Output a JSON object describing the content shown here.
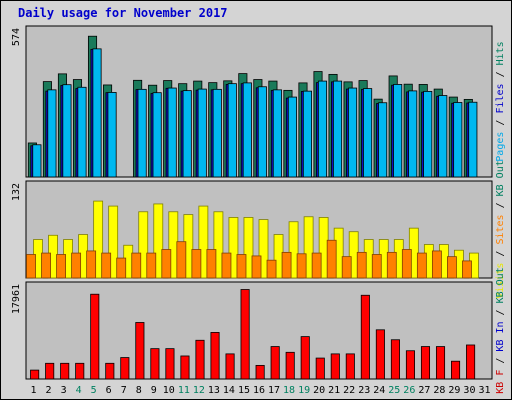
{
  "chart_data": {
    "type": "bar",
    "title": "Daily usage for November 2017",
    "categories": [
      "1",
      "2",
      "3",
      "4",
      "5",
      "6",
      "7",
      "8",
      "9",
      "10",
      "11",
      "12",
      "13",
      "14",
      "15",
      "16",
      "17",
      "18",
      "19",
      "20",
      "21",
      "22",
      "23",
      "24",
      "25",
      "26",
      "27",
      "28",
      "29",
      "30",
      "31"
    ],
    "weekend_days": [
      "4",
      "5",
      "11",
      "12",
      "18",
      "19",
      "25",
      "26"
    ],
    "panels": [
      {
        "id": "top",
        "ymax_label": "574",
        "ylim": [
          0,
          574
        ],
        "label_parts": [
          {
            "text": "Pages",
            "color": "#00a8e8"
          },
          {
            "text": " / ",
            "color": "#000000"
          },
          {
            "text": "Files",
            "color": "#0000cc"
          },
          {
            "text": " / ",
            "color": "#000000"
          },
          {
            "text": "Hits",
            "color": "#008060"
          }
        ],
        "series": [
          {
            "name": "Hits",
            "color": "#1a7a5a",
            "values": [
              132,
              370,
              400,
              378,
              546,
              357,
              0,
              375,
              356,
              374,
              362,
              372,
              366,
              373,
              401,
              378,
              372,
              336,
              365,
              409,
              398,
              369,
              374,
              302,
              392,
              360,
              359,
              341,
              310,
              301,
              0
            ]
          },
          {
            "name": "Files",
            "color": "#1010c0",
            "values": [
              121,
              333,
              355,
              343,
              495,
              327,
              0,
              339,
              324,
              344,
              333,
              337,
              338,
              359,
              362,
              346,
              336,
              306,
              332,
              366,
              369,
              341,
              340,
              285,
              356,
              330,
              329,
              313,
              286,
              287,
              0
            ]
          },
          {
            "name": "Pages",
            "color": "#00b8f0",
            "values": [
              125,
              338,
              358,
              348,
              497,
              328,
              0,
              340,
              327,
              345,
              335,
              341,
              340,
              362,
              365,
              350,
              338,
              310,
              333,
              372,
              372,
              345,
              343,
              288,
              359,
              334,
              332,
              316,
              289,
              290,
              0
            ]
          }
        ]
      },
      {
        "id": "middle",
        "ymax_label": "132",
        "ylim": [
          0,
          132
        ],
        "label_parts": [
          {
            "text": "Visits",
            "color": "#e8e800"
          },
          {
            "text": " / ",
            "color": "#000000"
          },
          {
            "text": "Sites",
            "color": "#ff8000"
          },
          {
            "text": " / ",
            "color": "#000000"
          },
          {
            "text": "KB Out",
            "color": "#008060"
          }
        ],
        "series": [
          {
            "name": "Visits",
            "color": "#ffff00",
            "values": [
              54,
              60,
              54,
              61,
              108,
              101,
              46,
              93,
              104,
              93,
              89,
              101,
              93,
              85,
              85,
              82,
              61,
              79,
              86,
              85,
              70,
              65,
              54,
              54,
              54,
              70,
              47,
              47,
              39,
              35,
              0
            ]
          },
          {
            "name": "Sites",
            "color": "#ff8000",
            "values": [
              33,
              35,
              33,
              35,
              38,
              35,
              28,
              35,
              35,
              40,
              51,
              40,
              40,
              35,
              33,
              31,
              25,
              36,
              34,
              35,
              53,
              30,
              36,
              33,
              36,
              40,
              35,
              38,
              30,
              24,
              0
            ]
          }
        ]
      },
      {
        "id": "bottom",
        "ymax_label": "17961",
        "ylim": [
          0,
          17961
        ],
        "label_parts": [
          {
            "text": "KB F",
            "color": "#cc0000"
          },
          {
            "text": " / ",
            "color": "#000000"
          },
          {
            "text": "KB In",
            "color": "#0000cc"
          },
          {
            "text": " / ",
            "color": "#000000"
          },
          {
            "text": "KB Out",
            "color": "#008060"
          }
        ],
        "series": [
          {
            "name": "KB F",
            "color": "#ff0000",
            "values": [
              1700,
              3000,
              3000,
              3000,
              16200,
              3000,
              4100,
              10800,
              5800,
              5800,
              4400,
              7400,
              8900,
              4800,
              17100,
              2600,
              6200,
              5100,
              8100,
              4000,
              4800,
              4800,
              16000,
              9400,
              7500,
              5400,
              6200,
              6200,
              3400,
              6500,
              0
            ]
          }
        ]
      }
    ]
  }
}
